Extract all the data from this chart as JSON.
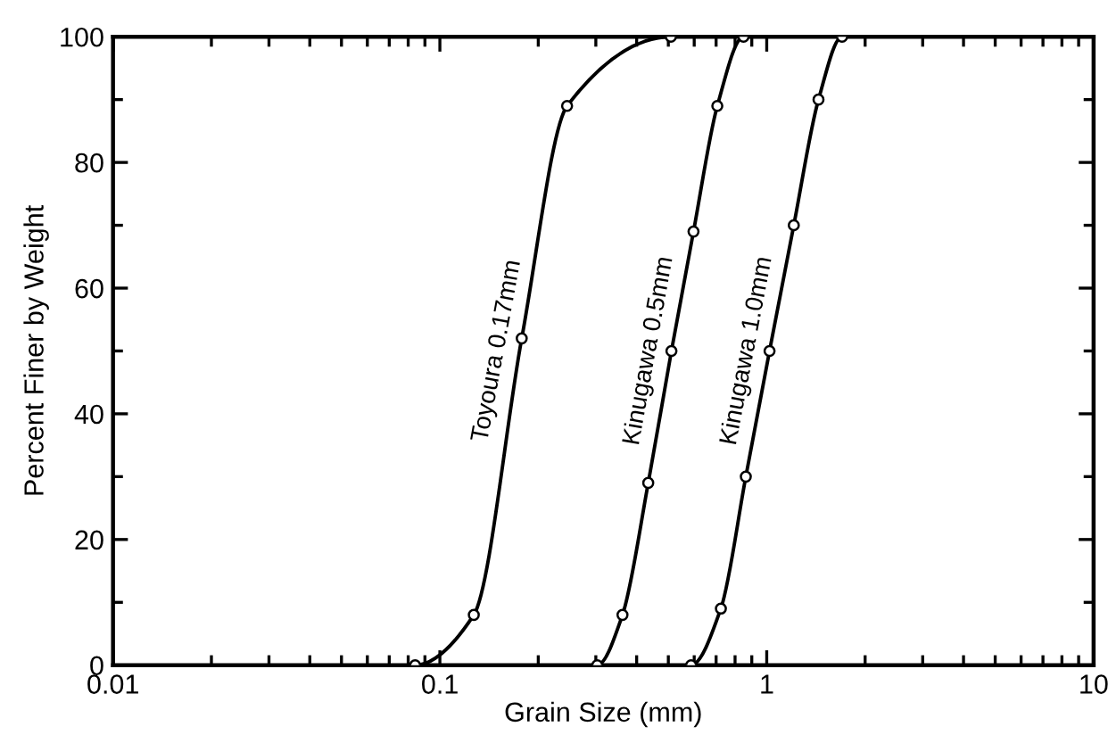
{
  "chart_data": {
    "type": "line",
    "xlabel": "Grain Size (mm)",
    "ylabel": "Percent Finer by Weight",
    "log": "x",
    "xlim": [
      0.01,
      10
    ],
    "xticks": [
      0.01,
      0.1,
      1,
      10
    ],
    "ylim": [
      0,
      100
    ],
    "yticks": [
      0,
      20,
      40,
      60,
      80,
      100
    ],
    "grid": false,
    "legend": false,
    "marker": "circle",
    "line_style": "solid",
    "series": [
      {
        "name": "Toyoura 0.17mm",
        "color": "#000000",
        "x": [
          0.084,
          0.127,
          0.178,
          0.245,
          0.509
        ],
        "values": [
          0,
          8,
          52,
          89,
          100
        ]
      },
      {
        "name": "Kinugawa 0.5mm",
        "color": "#000000",
        "x": [
          0.303,
          0.362,
          0.434,
          0.511,
          0.597,
          0.706,
          0.849
        ],
        "values": [
          0,
          8,
          29,
          50,
          69,
          89,
          100
        ]
      },
      {
        "name": "Kinugawa 1.0mm",
        "color": "#000000",
        "x": [
          0.587,
          0.724,
          0.863,
          1.02,
          1.21,
          1.44,
          1.7
        ],
        "values": [
          0,
          9,
          30,
          50,
          70,
          90,
          100
        ]
      }
    ]
  }
}
